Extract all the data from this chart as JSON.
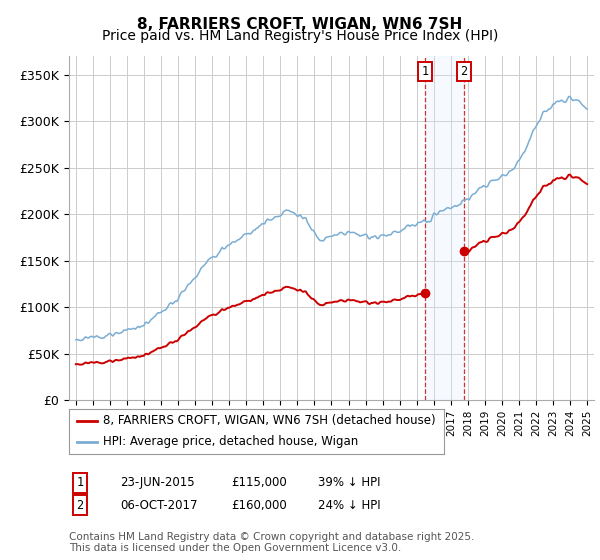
{
  "title": "8, FARRIERS CROFT, WIGAN, WN6 7SH",
  "subtitle": "Price paid vs. HM Land Registry's House Price Index (HPI)",
  "ylim": [
    0,
    370000
  ],
  "yticks": [
    0,
    50000,
    100000,
    150000,
    200000,
    250000,
    300000,
    350000
  ],
  "ytick_labels": [
    "£0",
    "£50K",
    "£100K",
    "£150K",
    "£200K",
    "£250K",
    "£300K",
    "£350K"
  ],
  "background_color": "#ffffff",
  "plot_bg_color": "#ffffff",
  "grid_color": "#cccccc",
  "sale1_date_num": 2015.47,
  "sale1_price": 115000,
  "sale1_text": "23-JUN-2015",
  "sale1_pct": "39% ↓ HPI",
  "sale2_date_num": 2017.76,
  "sale2_price": 160000,
  "sale2_text": "06-OCT-2017",
  "sale2_pct": "24% ↓ HPI",
  "hpi_color": "#7aadd4",
  "price_color": "#cc0000",
  "shade_color": "#ddeeff",
  "legend1_label": "8, FARRIERS CROFT, WIGAN, WN6 7SH (detached house)",
  "legend2_label": "HPI: Average price, detached house, Wigan",
  "footer": "Contains HM Land Registry data © Crown copyright and database right 2025.\nThis data is licensed under the Open Government Licence v3.0.",
  "title_fontsize": 11,
  "subtitle_fontsize": 10,
  "tick_fontsize": 9,
  "legend_fontsize": 9,
  "footer_fontsize": 7.5,
  "xlim_left": 1994.6,
  "xlim_right": 2025.4
}
